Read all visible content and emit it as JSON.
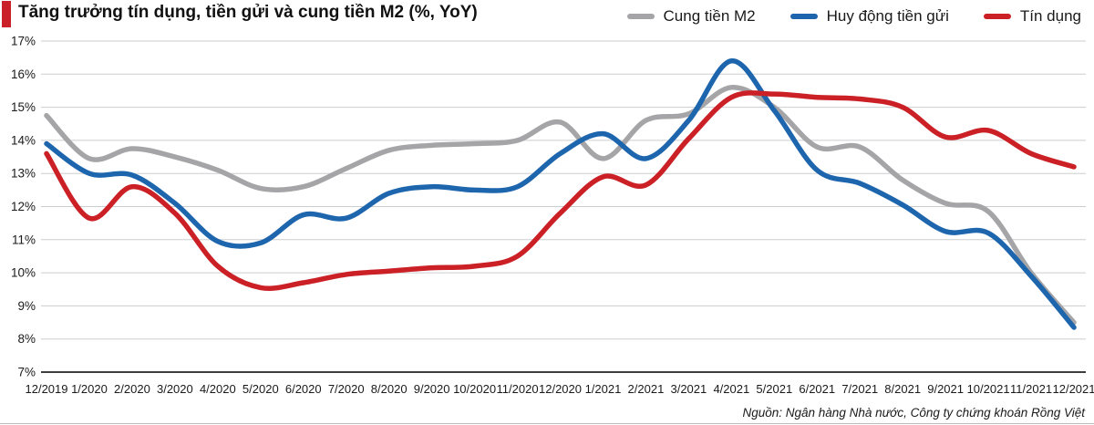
{
  "title": "Tăng trưởng tín dụng, tiền gửi và cung tiền M2 (%, YoY)",
  "accent_color": "#c9202a",
  "source": "Nguồn: Ngân hàng Nhà nước, Công ty chứng khoán Rồng Việt",
  "chart_data": {
    "type": "line",
    "x_labels": [
      "12/2019",
      "1/2020",
      "2/2020",
      "3/2020",
      "4/2020",
      "5/2020",
      "6/2020",
      "7/2020",
      "8/2020",
      "9/2020",
      "10/2020",
      "11/2020",
      "12/2020",
      "1/2021",
      "2/2021",
      "3/2021",
      "4/2021",
      "5/2021",
      "6/2021",
      "7/2021",
      "8/2021",
      "9/2021",
      "10/2021",
      "11/2021",
      "12/2021"
    ],
    "ylim": [
      7,
      17
    ],
    "ytick_step": 1,
    "ytick_suffix": "%",
    "grid": true,
    "legend_position": "top-right",
    "colors": {
      "gridline": "#cbcdcf",
      "axis_line": "#3d3d3d",
      "tick_text": "#1a1a1a"
    },
    "series": [
      {
        "name": "Cung tiền M2",
        "color": "#a5a5a7",
        "values": [
          14.75,
          13.45,
          13.75,
          13.5,
          13.1,
          12.55,
          12.6,
          13.15,
          13.7,
          13.85,
          13.9,
          14.0,
          14.55,
          13.45,
          14.6,
          14.8,
          15.6,
          15.0,
          13.8,
          13.8,
          12.8,
          12.1,
          11.85,
          10.0,
          8.5
        ]
      },
      {
        "name": "Huy động tiền gửi",
        "color": "#1d65ad",
        "values": [
          13.9,
          13.0,
          12.95,
          12.1,
          10.95,
          10.9,
          11.75,
          11.65,
          12.4,
          12.6,
          12.5,
          12.6,
          13.6,
          14.2,
          13.45,
          14.6,
          16.4,
          14.9,
          13.1,
          12.7,
          12.05,
          11.25,
          11.2,
          9.9,
          8.35
        ]
      },
      {
        "name": "Tín dụng",
        "color": "#cb2026",
        "values": [
          13.6,
          11.65,
          12.6,
          11.8,
          10.2,
          9.55,
          9.7,
          9.95,
          10.05,
          10.15,
          10.2,
          10.5,
          11.8,
          12.9,
          12.65,
          14.05,
          15.3,
          15.4,
          15.3,
          15.25,
          15.0,
          14.1,
          14.3,
          13.6,
          13.2
        ]
      }
    ]
  }
}
